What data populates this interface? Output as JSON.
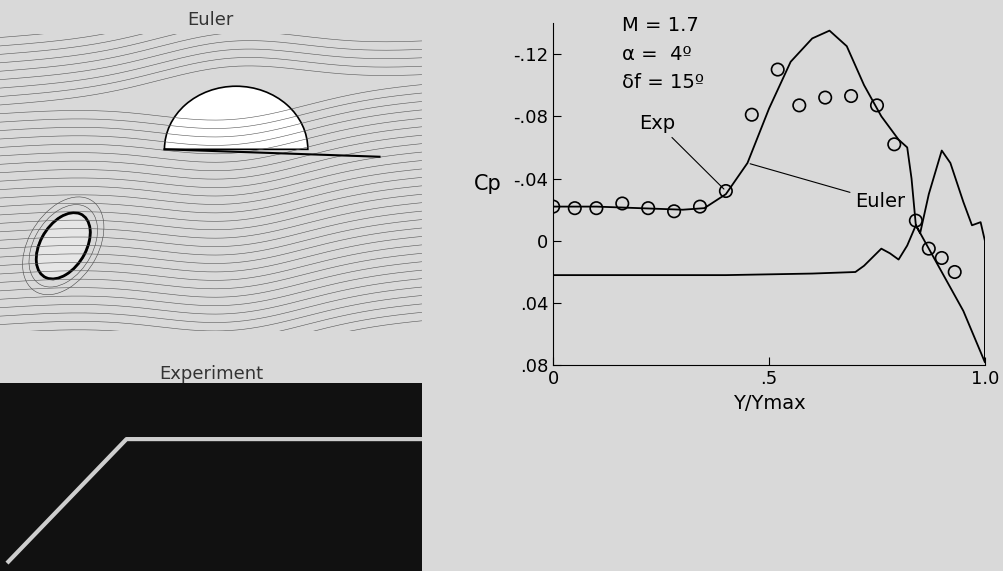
{
  "images": [
    {
      "title": "Euler"
    },
    {
      "title": "Experiment"
    }
  ],
  "chart_data": {
    "type": "line",
    "annotations": [
      "M = 1.7",
      "α =  4º",
      "δf = 15º"
    ],
    "x_label": "Y/Ymax",
    "y_label": "Cp",
    "xlim": [
      0,
      1.0
    ],
    "ylim": [
      0.08,
      -0.14
    ],
    "xticks": [
      0,
      {
        "value": 0.5,
        "label": ".5"
      },
      {
        "value": 1.0,
        "label": "1.0"
      }
    ],
    "yticks": [
      {
        "value": -0.12,
        "label": "-.12"
      },
      {
        "value": -0.08,
        "label": "-.08"
      },
      {
        "value": -0.04,
        "label": "-.04"
      },
      0,
      {
        "value": 0.04,
        "label": ".04"
      },
      {
        "value": 0.08,
        "label": ".08"
      }
    ],
    "grid": false,
    "series": [
      {
        "name": "Euler",
        "type": "line",
        "color": "#000000",
        "line_style": "solid",
        "x": [
          0,
          0.1,
          0.2,
          0.3,
          0.35,
          0.4,
          0.45,
          0.5,
          0.55,
          0.6,
          0.64,
          0.68,
          0.72,
          0.76,
          0.8,
          0.82,
          0.83,
          0.84,
          0.85,
          0.87,
          0.9,
          0.92,
          0.95,
          0.97,
          0.99,
          1.0,
          1.0,
          0.95,
          0.9,
          0.86,
          0.84,
          0.82,
          0.8,
          0.78,
          0.76,
          0.72,
          0.7,
          0.6,
          0.4,
          0.2,
          0
        ],
        "values": [
          -0.022,
          -0.022,
          -0.021,
          -0.02,
          -0.021,
          -0.03,
          -0.05,
          -0.085,
          -0.115,
          -0.13,
          -0.135,
          -0.125,
          -0.1,
          -0.08,
          -0.065,
          -0.06,
          -0.04,
          -0.01,
          -0.005,
          -0.03,
          -0.058,
          -0.05,
          -0.025,
          -0.01,
          -0.012,
          0.0,
          0.078,
          0.045,
          0.02,
          0.0,
          -0.01,
          0.003,
          0.012,
          0.008,
          0.005,
          0.016,
          0.02,
          0.021,
          0.022,
          0.022,
          0.022
        ]
      },
      {
        "name": "Exp",
        "type": "scatter",
        "color": "#000000",
        "marker": "o",
        "x": [
          0,
          0.05,
          0.1,
          0.16,
          0.22,
          0.28,
          0.34,
          0.4,
          0.46,
          0.52,
          0.57,
          0.63,
          0.69,
          0.75,
          0.79,
          0.84,
          0.87,
          0.9,
          0.93
        ],
        "values": [
          -0.022,
          -0.021,
          -0.021,
          -0.024,
          -0.021,
          -0.019,
          -0.022,
          -0.032,
          -0.081,
          -0.11,
          -0.087,
          -0.092,
          -0.093,
          -0.087,
          -0.062,
          -0.013,
          0.005,
          0.011,
          0.02
        ]
      }
    ]
  }
}
